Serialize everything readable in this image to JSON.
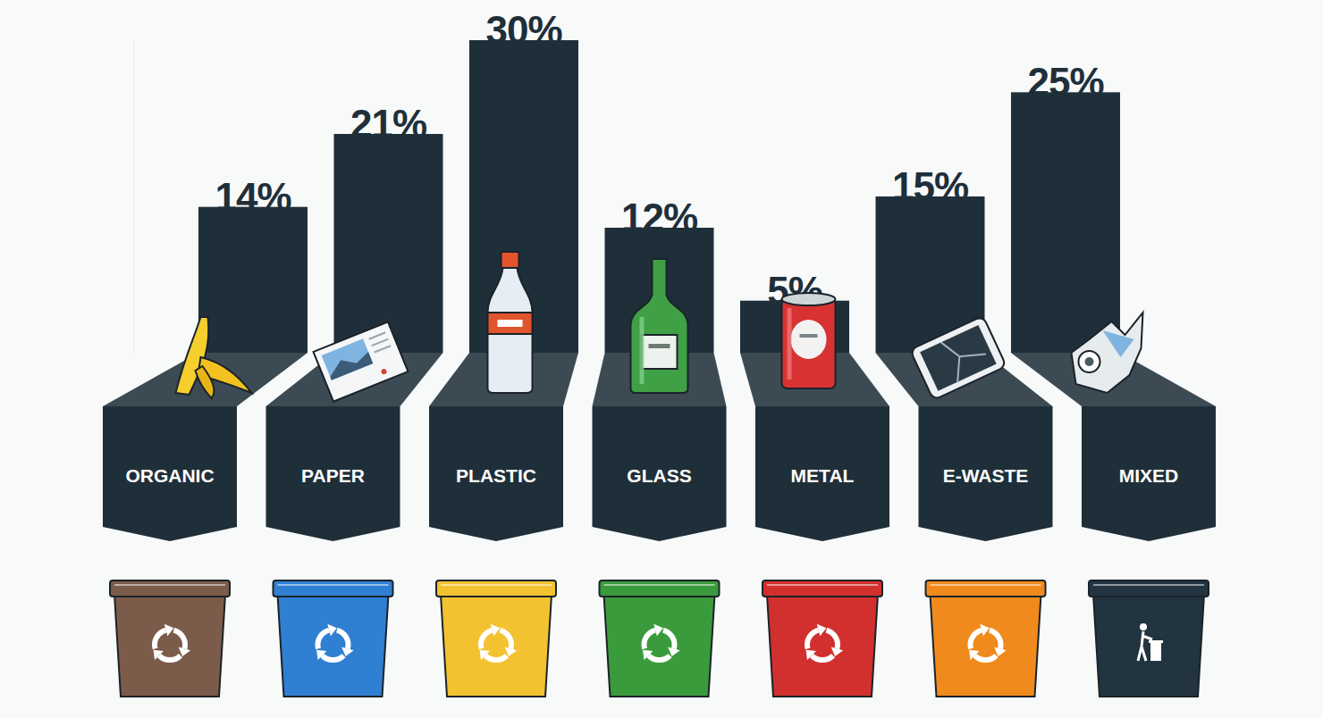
{
  "chart_data": {
    "type": "bar",
    "categories": [
      "ORGANIC",
      "PAPER",
      "PLASTIC",
      "GLASS",
      "METAL",
      "E-WASTE",
      "MIXED"
    ],
    "values": [
      14,
      21,
      30,
      12,
      5,
      15,
      25
    ],
    "value_labels": [
      "14%",
      "21%",
      "30%",
      "12%",
      "5%",
      "15%",
      "25%"
    ],
    "color": "#1f2f3a",
    "ylim": [
      0,
      30
    ],
    "data_labels": true,
    "tick_labels": false,
    "grid": false
  }
}
